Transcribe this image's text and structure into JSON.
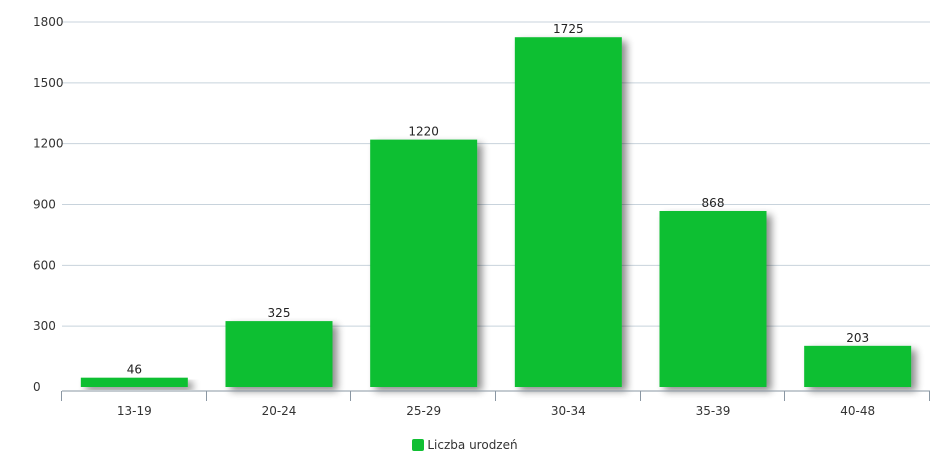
{
  "chart_data": {
    "type": "bar",
    "categories": [
      "13-19",
      "20-24",
      "25-29",
      "30-34",
      "35-39",
      "40-48"
    ],
    "series": [
      {
        "name": "Liczba urodzeń",
        "values": [
          46,
          325,
          1220,
          1725,
          868,
          203
        ],
        "color": "#10bf33"
      }
    ],
    "data_labels": [
      "46",
      "325",
      "1220",
      "1725",
      "868",
      "203"
    ],
    "y_ticks": [
      "0",
      "300",
      "600",
      "900",
      "1200",
      "1500",
      "1800"
    ],
    "ylim": [
      0,
      1800
    ],
    "grid": true,
    "legend_position": "bottom-center"
  },
  "colors": {
    "bar": "#10bf33",
    "grid": "#c8d3dc",
    "axis": "#8a97a3"
  }
}
